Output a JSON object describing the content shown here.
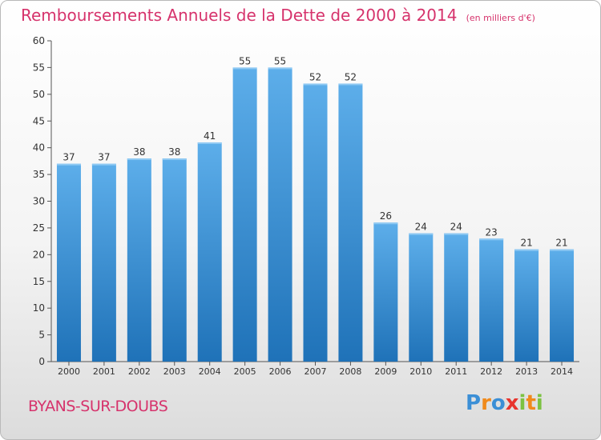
{
  "title": "Remboursements Annuels de la Dette de 2000 à 2014",
  "subtitle": "(en milliers d'€)",
  "commune": "BYANS-SUR-DOUBS",
  "logo": {
    "letters": [
      "P",
      "r",
      "o",
      "x",
      "i",
      "t",
      "i"
    ],
    "colors": [
      "#3b8fd6",
      "#f08a1c",
      "#3b8fd6",
      "#e8342e",
      "#7cc242",
      "#f08a1c",
      "#7cc242"
    ]
  },
  "colors": {
    "title": "#d6336c",
    "bar_top": "#5daeea",
    "bar_bottom": "#1f72b8",
    "bar_edge": "#8fc9f3"
  },
  "chart_data": {
    "type": "bar",
    "categories": [
      "2000",
      "2001",
      "2002",
      "2003",
      "2004",
      "2005",
      "2006",
      "2007",
      "2008",
      "2009",
      "2010",
      "2011",
      "2012",
      "2013",
      "2014"
    ],
    "values": [
      37,
      37,
      38,
      38,
      41,
      55,
      55,
      52,
      52,
      26,
      24,
      24,
      23,
      21,
      21
    ],
    "ylim": [
      0,
      60
    ],
    "yticks": [
      0,
      5,
      10,
      15,
      20,
      25,
      30,
      35,
      40,
      45,
      50,
      55,
      60
    ],
    "grid": false,
    "data_labels": true
  }
}
